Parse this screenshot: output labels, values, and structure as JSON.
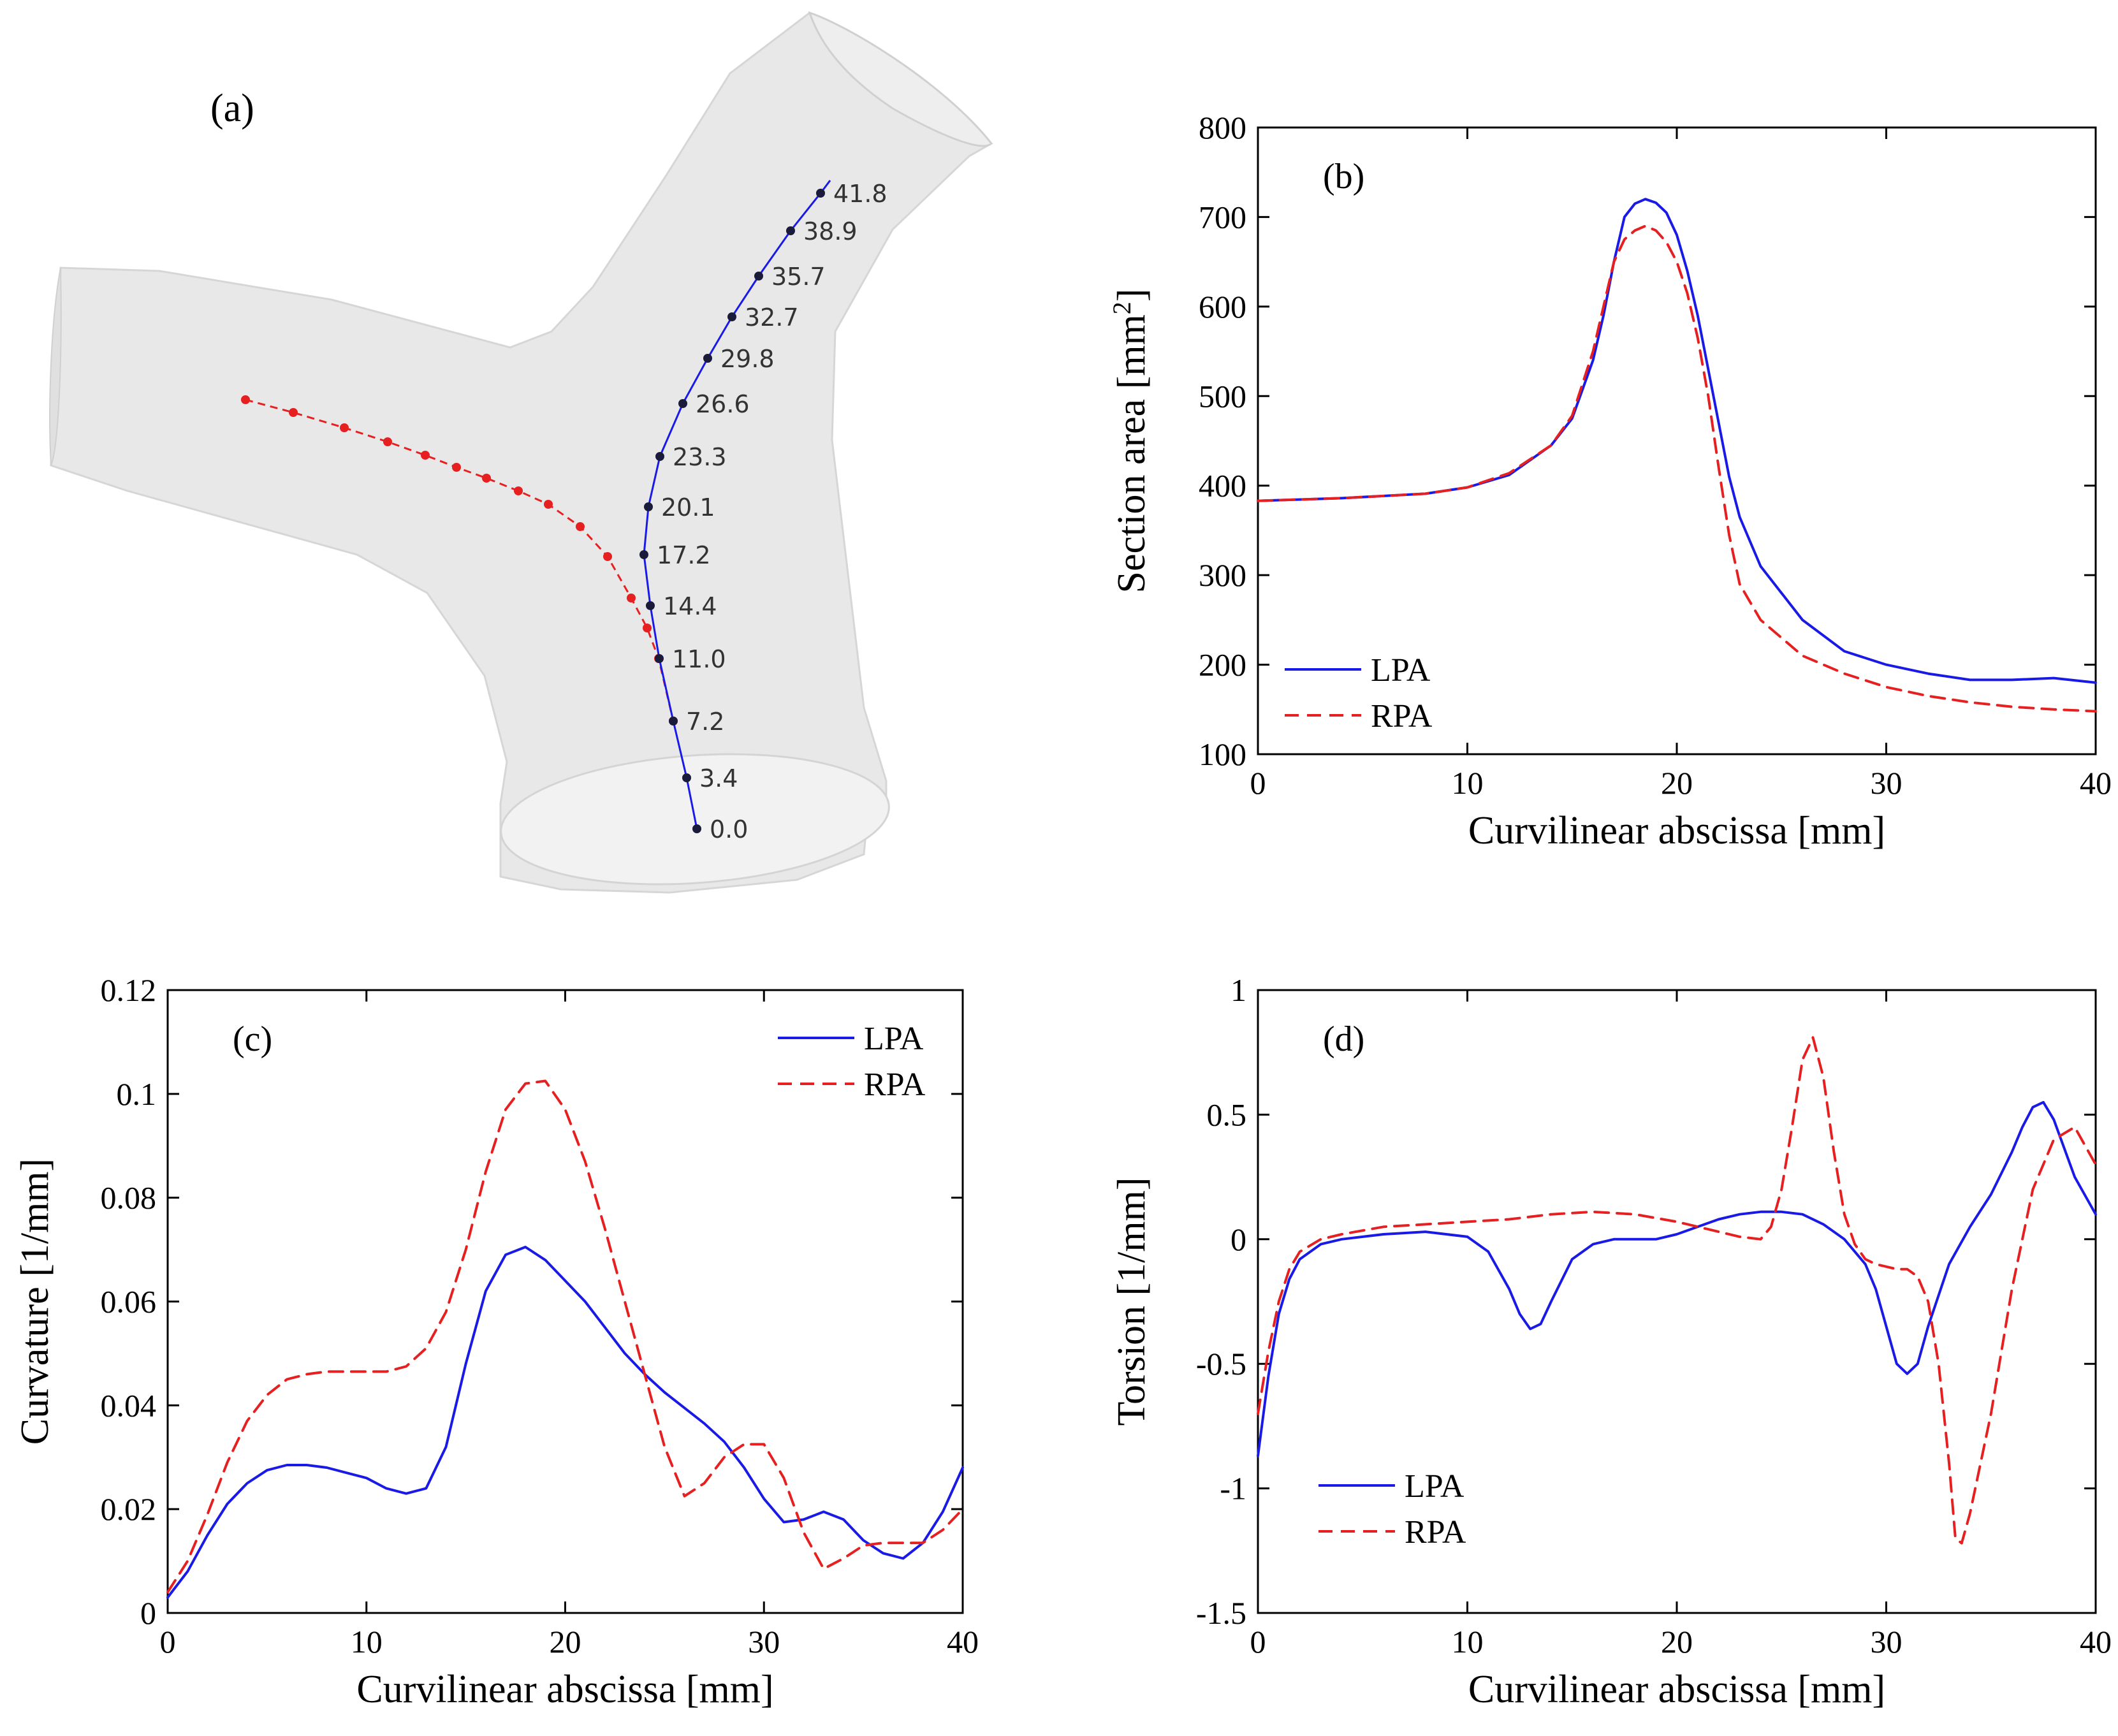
{
  "chart_data": [
    {
      "type": "diagram",
      "panel": "(a)",
      "series": [
        {
          "name": "LPA",
          "color": "#1a1ae6",
          "point_color": "#1a1a3a",
          "labels": [
            "0.0",
            "3.4",
            "7.2",
            "11.0",
            "14.4",
            "17.2",
            "20.1",
            "23.3",
            "26.6",
            "29.8",
            "32.7",
            "35.7",
            "38.9",
            "41.8"
          ]
        },
        {
          "name": "RPA",
          "color": "#e62020",
          "point_count": 15
        }
      ]
    },
    {
      "type": "line",
      "panel": "(b)",
      "xlabel": "Curvilinear abscissa [mm]",
      "ylabel": "Section area [mm",
      "ylabel_sup": "2",
      "ylabel_end": "]",
      "xlim": [
        0,
        40
      ],
      "ylim": [
        100,
        800
      ],
      "xticks": [
        "0",
        "10",
        "20",
        "30",
        "40"
      ],
      "yticks": [
        "100",
        "200",
        "300",
        "400",
        "500",
        "600",
        "700",
        "800"
      ],
      "legend": "bottom-left",
      "series": [
        {
          "name": "LPA",
          "color": "#1a1ae6",
          "style": "solid",
          "x": [
            0,
            4,
            8,
            10,
            12,
            14,
            15,
            16,
            16.5,
            17,
            17.5,
            18,
            18.5,
            19,
            19.5,
            20,
            20.5,
            21,
            21.5,
            22,
            22.5,
            23,
            24,
            26,
            28,
            30,
            32,
            34,
            36,
            38,
            40
          ],
          "y": [
            383,
            386,
            391,
            398,
            412,
            445,
            475,
            540,
            590,
            650,
            700,
            715,
            720,
            716,
            705,
            680,
            640,
            590,
            530,
            470,
            410,
            365,
            310,
            250,
            215,
            200,
            190,
            183,
            183,
            185,
            180
          ]
        },
        {
          "name": "RPA",
          "color": "#e62020",
          "style": "dashed",
          "x": [
            0,
            4,
            8,
            10,
            12,
            14,
            15,
            16,
            16.5,
            17,
            17.5,
            18,
            18.5,
            19,
            19.5,
            20,
            20.5,
            21,
            21.5,
            22,
            22.5,
            23,
            24,
            26,
            28,
            30,
            32,
            34,
            36,
            38,
            40
          ],
          "y": [
            383,
            386,
            391,
            398,
            414,
            445,
            478,
            550,
            600,
            650,
            675,
            685,
            690,
            685,
            672,
            650,
            615,
            565,
            500,
            420,
            345,
            290,
            250,
            210,
            190,
            175,
            165,
            158,
            153,
            150,
            148
          ]
        }
      ]
    },
    {
      "type": "line",
      "panel": "(c)",
      "xlabel": "Curvilinear abscissa [mm]",
      "ylabel": "Curvature [1/mm]",
      "xlim": [
        0,
        40
      ],
      "ylim": [
        0,
        0.12
      ],
      "xticks": [
        "0",
        "10",
        "20",
        "30",
        "40"
      ],
      "yticks": [
        "0",
        "0.02",
        "0.04",
        "0.06",
        "0.08",
        "0.1",
        "0.12"
      ],
      "legend": "top-right",
      "series": [
        {
          "name": "LPA",
          "color": "#1a1ae6",
          "style": "solid",
          "x": [
            0,
            1,
            2,
            3,
            4,
            5,
            6,
            7,
            8,
            9,
            10,
            11,
            12,
            13,
            14,
            15,
            16,
            17,
            18,
            19,
            20,
            21,
            22,
            23,
            24,
            25,
            26,
            27,
            28,
            29,
            30,
            31,
            32,
            33,
            34,
            35,
            36,
            37,
            38,
            39,
            40
          ],
          "y": [
            0.003,
            0.008,
            0.015,
            0.021,
            0.025,
            0.0275,
            0.0285,
            0.0285,
            0.028,
            0.027,
            0.026,
            0.024,
            0.023,
            0.024,
            0.032,
            0.048,
            0.062,
            0.069,
            0.0705,
            0.068,
            0.064,
            0.06,
            0.055,
            0.05,
            0.046,
            0.0425,
            0.0395,
            0.0365,
            0.033,
            0.028,
            0.022,
            0.0175,
            0.018,
            0.0195,
            0.018,
            0.014,
            0.0115,
            0.0105,
            0.0135,
            0.0195,
            0.028
          ]
        },
        {
          "name": "RPA",
          "color": "#e62020",
          "style": "dashed",
          "x": [
            0,
            1,
            2,
            3,
            4,
            5,
            6,
            7,
            8,
            9,
            10,
            11,
            12,
            13,
            14,
            15,
            16,
            17,
            18,
            19,
            20,
            21,
            22,
            23,
            24,
            25,
            26,
            27,
            28,
            29,
            30,
            31,
            32,
            33,
            34,
            35,
            36,
            37,
            38,
            39,
            40
          ],
          "y": [
            0.004,
            0.01,
            0.019,
            0.029,
            0.037,
            0.042,
            0.045,
            0.046,
            0.0465,
            0.0465,
            0.0465,
            0.0465,
            0.0475,
            0.051,
            0.058,
            0.07,
            0.085,
            0.097,
            0.102,
            0.1025,
            0.097,
            0.087,
            0.074,
            0.06,
            0.046,
            0.032,
            0.0225,
            0.025,
            0.03,
            0.0325,
            0.0325,
            0.026,
            0.0155,
            0.0085,
            0.0105,
            0.013,
            0.0135,
            0.0135,
            0.0135,
            0.016,
            0.02
          ]
        }
      ]
    },
    {
      "type": "line",
      "panel": "(d)",
      "xlabel": "Curvilinear abscissa [mm]",
      "ylabel": "Torsion [1/mm]",
      "xlim": [
        0,
        40
      ],
      "ylim": [
        -1.5,
        1
      ],
      "xticks": [
        "0",
        "10",
        "20",
        "30",
        "40"
      ],
      "yticks": [
        "-1.5",
        "-1",
        "-0.5",
        "0",
        "0.5",
        "1"
      ],
      "legend": "bottom-left",
      "series": [
        {
          "name": "LPA",
          "color": "#1a1ae6",
          "style": "solid",
          "x": [
            0,
            0.5,
            1,
            1.5,
            2,
            3,
            4,
            6,
            8,
            10,
            11,
            12,
            12.5,
            13,
            13.5,
            14,
            15,
            16,
            17,
            18,
            19,
            20,
            21,
            22,
            23,
            24,
            25,
            26,
            27,
            28,
            29,
            29.5,
            30,
            30.5,
            31,
            31.5,
            32,
            33,
            34,
            35,
            36,
            36.5,
            37,
            37.5,
            38,
            39,
            40
          ],
          "y": [
            -0.87,
            -0.55,
            -0.3,
            -0.16,
            -0.08,
            -0.02,
            0.0,
            0.02,
            0.03,
            0.01,
            -0.05,
            -0.2,
            -0.3,
            -0.36,
            -0.34,
            -0.25,
            -0.08,
            -0.02,
            0.0,
            0.0,
            0.0,
            0.02,
            0.05,
            0.08,
            0.1,
            0.11,
            0.11,
            0.1,
            0.06,
            0.0,
            -0.1,
            -0.2,
            -0.35,
            -0.5,
            -0.54,
            -0.5,
            -0.35,
            -0.1,
            0.05,
            0.18,
            0.35,
            0.45,
            0.53,
            0.55,
            0.48,
            0.25,
            0.1
          ]
        },
        {
          "name": "RPA",
          "color": "#e62020",
          "style": "dashed",
          "x": [
            0,
            0.5,
            1,
            1.5,
            2,
            3,
            4,
            6,
            8,
            10,
            12,
            14,
            16,
            18,
            20,
            22,
            23,
            24,
            24.5,
            25,
            25.5,
            26,
            26.5,
            27,
            27.5,
            28,
            28.5,
            29,
            29.5,
            30,
            30.5,
            31,
            31.5,
            32,
            32.5,
            33,
            33.3,
            33.6,
            34,
            35,
            36,
            37,
            38,
            39,
            40
          ],
          "y": [
            -0.7,
            -0.45,
            -0.25,
            -0.12,
            -0.05,
            0.0,
            0.02,
            0.05,
            0.06,
            0.07,
            0.08,
            0.1,
            0.11,
            0.1,
            0.07,
            0.03,
            0.01,
            0.0,
            0.05,
            0.2,
            0.45,
            0.72,
            0.81,
            0.65,
            0.35,
            0.1,
            -0.02,
            -0.08,
            -0.1,
            -0.11,
            -0.12,
            -0.12,
            -0.15,
            -0.25,
            -0.5,
            -0.9,
            -1.2,
            -1.22,
            -1.1,
            -0.7,
            -0.2,
            0.2,
            0.4,
            0.45,
            0.3
          ]
        }
      ]
    }
  ]
}
